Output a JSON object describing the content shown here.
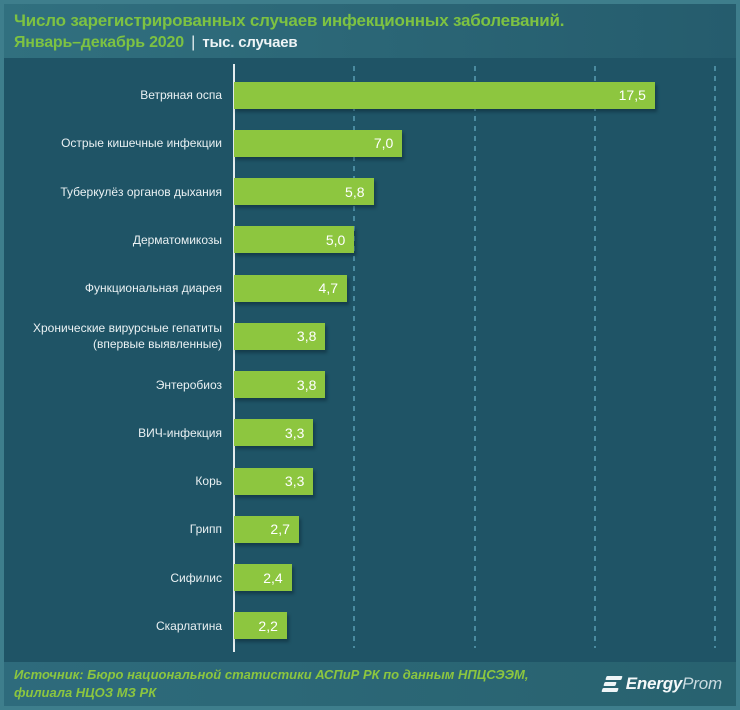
{
  "header": {
    "title": "Число зарегистрированных случаев инфекционных заболеваний.",
    "subtitle": "Январь–декабрь 2020",
    "separator": "|",
    "unit_label": "тыс. случаев"
  },
  "chart_data": {
    "type": "bar",
    "orientation": "horizontal",
    "title": "Число зарегистрированных случаев инфекционных заболеваний. Январь–декабрь 2020",
    "unit": "тыс. случаев",
    "xlabel": "",
    "ylabel": "",
    "xlim": [
      0,
      20
    ],
    "gridlines_at": [
      5,
      10,
      15,
      20
    ],
    "grid": "dashed-vertical",
    "legend": "none",
    "categories": [
      "Ветряная оспа",
      "Острые кишечные инфекции",
      "Туберкулёз органов дыхания",
      "Дерматомикозы",
      "Функциональная диарея",
      "Хронические вирурсные гепатиты\n(впервые выявленные)",
      "Энтеробиоз",
      "ВИЧ-инфекция",
      "Корь",
      "Грипп",
      "Сифилис",
      "Скарлатина"
    ],
    "values": [
      17.5,
      7.0,
      5.8,
      5.0,
      4.7,
      3.8,
      3.8,
      3.3,
      3.3,
      2.7,
      2.4,
      2.2
    ],
    "value_labels": [
      "17,5",
      "7,0",
      "5,8",
      "5,0",
      "4,7",
      "3,8",
      "3,8",
      "3,3",
      "3,3",
      "2,7",
      "2,4",
      "2,2"
    ]
  },
  "footer": {
    "source": "Источник: Бюро национальной  статистики АСПиР РК по данным  НПЦСЭЭМ,\nфилиала  НЦОЗ МЗ РК",
    "logo_bold": "Energy",
    "logo_light": "Prom"
  },
  "colors": {
    "bar": "#8dc63f",
    "title_text": "#7dc242",
    "footer_text": "#8cc63f",
    "plot_bg": "#1f5466",
    "frame": "#3e7e8c",
    "axis": "#e3ecee",
    "gridline": "#4a8ba0",
    "value_text": "#ffffff",
    "label_text": "#eaf1f3"
  }
}
